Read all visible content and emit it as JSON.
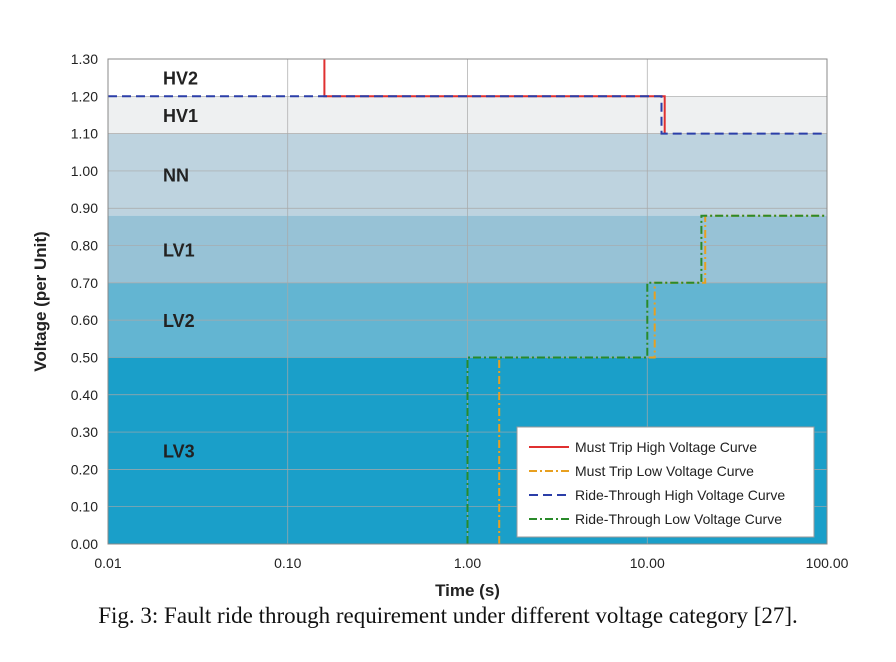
{
  "caption": "Fig. 3: Fault ride through requirement under different voltage category [27].",
  "chart_data": {
    "type": "line",
    "xlabel": "Time (s)",
    "ylabel": "Voltage (per Unit)",
    "xscale": "log",
    "xlim": [
      0.01,
      100
    ],
    "ylim": [
      0,
      1.3
    ],
    "x_ticks": [
      "0.01",
      "0.10",
      "1.00",
      "10.00",
      "100.00"
    ],
    "y_ticks": [
      "0.00",
      "0.10",
      "0.20",
      "0.30",
      "0.40",
      "0.50",
      "0.60",
      "0.70",
      "0.80",
      "0.90",
      "1.00",
      "1.10",
      "1.20",
      "1.30"
    ],
    "grid": true,
    "legend_position": "bottom-right",
    "regions": [
      {
        "label": "HV2",
        "ymin": 1.2,
        "ymax": 1.3,
        "color": "#ffffff"
      },
      {
        "label": "HV1",
        "ymin": 1.1,
        "ymax": 1.2,
        "color": "#eef0f1"
      },
      {
        "label": "NN",
        "ymin": 0.88,
        "ymax": 1.1,
        "color": "#bed3df"
      },
      {
        "label": "LV1",
        "ymin": 0.7,
        "ymax": 0.88,
        "color": "#97c2d6"
      },
      {
        "label": "LV2",
        "ymin": 0.5,
        "ymax": 0.7,
        "color": "#63b5d2"
      },
      {
        "label": "LV3",
        "ymin": 0.0,
        "ymax": 0.5,
        "color": "#1a9fc9"
      }
    ],
    "series": [
      {
        "name": "Must Trip High Voltage Curve",
        "color": "#e03030",
        "dash": "solid",
        "x": [
          0.16,
          0.16,
          12.5,
          12.5
        ],
        "y": [
          1.3,
          1.2,
          1.2,
          1.1
        ]
      },
      {
        "name": "Must Trip Low Voltage Curve",
        "color": "#e8a020",
        "dash": "dashdot",
        "x": [
          1.5,
          1.5,
          11,
          11,
          21,
          21,
          100
        ],
        "y": [
          0.0,
          0.5,
          0.5,
          0.7,
          0.7,
          0.88,
          0.88
        ]
      },
      {
        "name": "Ride-Through High Voltage Curve",
        "color": "#2b3ea8",
        "dash": "dashed",
        "x": [
          0.01,
          12,
          12,
          100
        ],
        "y": [
          1.2,
          1.2,
          1.1,
          1.1
        ]
      },
      {
        "name": "Ride-Through Low Voltage Curve",
        "color": "#2a8a2a",
        "dash": "dashdot",
        "x": [
          1.0,
          1.0,
          10,
          10,
          20,
          20,
          100
        ],
        "y": [
          0.0,
          0.5,
          0.5,
          0.7,
          0.7,
          0.88,
          0.88
        ]
      }
    ]
  }
}
